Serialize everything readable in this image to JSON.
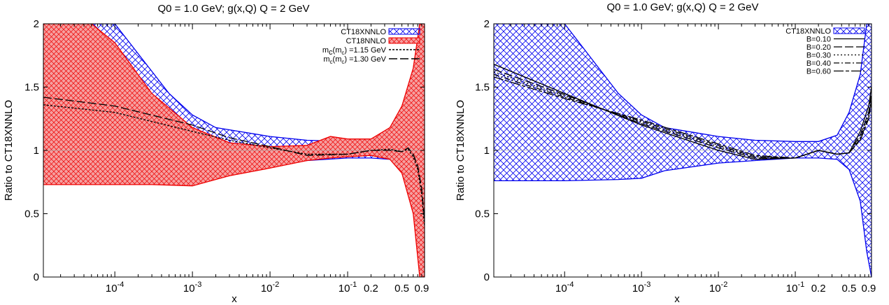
{
  "colors": {
    "ct18xnnlo": "#0000ee",
    "ct18nnlo": "#ee0000",
    "red_fill": "#f5a0a0",
    "curve": "#000000",
    "grid": "#b0b0b0"
  },
  "chart_data": [
    {
      "type": "line",
      "title": "Q0 = 1.0 GeV; g(x,Q)   Q = 2 GeV",
      "xlabel": "x",
      "ylabel": "Ratio to CT18XNNLO",
      "xscale": "log",
      "xlim": [
        1.2e-05,
        0.98
      ],
      "ylim": [
        0,
        2
      ],
      "yticks": [
        0,
        0.5,
        1,
        1.5,
        2
      ],
      "ytick_labels": [
        "0",
        "0.5",
        "1",
        "1.5",
        "2"
      ],
      "xticks": [
        {
          "x": 0.0001,
          "base": "10",
          "exp": "-4"
        },
        {
          "x": 0.001,
          "base": "10",
          "exp": "-3"
        },
        {
          "x": 0.01,
          "base": "10",
          "exp": "-2"
        },
        {
          "x": 0.1,
          "base": "10",
          "exp": "-1"
        },
        {
          "x": 0.2,
          "base": "0.2",
          "exp": ""
        },
        {
          "x": 0.5,
          "base": "0.5",
          "exp": ""
        },
        {
          "x": 0.9,
          "base": "0.9",
          "exp": ""
        }
      ],
      "legend_position": "top-right",
      "bands": [
        {
          "name": "CT18XNNLO",
          "color": "#0000ee",
          "hatch": "cross",
          "x": [
            1.2e-05,
            2e-05,
            0.0001,
            0.0005,
            0.001,
            0.002,
            0.01,
            0.03,
            0.1,
            0.2,
            0.35,
            0.5,
            0.7,
            0.85,
            0.98
          ],
          "upper": [
            2.0,
            2.0,
            2.0,
            1.45,
            1.28,
            1.18,
            1.11,
            1.08,
            1.07,
            1.07,
            1.12,
            1.3,
            1.6,
            2.0,
            2.0
          ],
          "lower": [
            0.76,
            0.76,
            0.76,
            0.77,
            0.78,
            0.84,
            0.9,
            0.92,
            0.94,
            0.94,
            0.93,
            0.85,
            0.6,
            0.2,
            0.0
          ]
        },
        {
          "name": "CT18NNLO",
          "color": "#ee0000",
          "hatch": "cross-fill",
          "x": [
            1.2e-05,
            5e-05,
            0.0001,
            0.0003,
            0.001,
            0.003,
            0.01,
            0.03,
            0.06,
            0.1,
            0.2,
            0.35,
            0.5,
            0.7,
            0.85,
            0.98
          ],
          "upper": [
            2.0,
            2.0,
            1.85,
            1.45,
            1.18,
            1.06,
            1.03,
            1.04,
            1.11,
            1.09,
            1.09,
            1.18,
            1.35,
            1.65,
            2.0,
            2.0
          ],
          "lower": [
            0.73,
            0.73,
            0.73,
            0.73,
            0.72,
            0.8,
            0.86,
            0.92,
            0.94,
            0.95,
            0.96,
            0.93,
            0.82,
            0.5,
            0.0,
            0.0
          ]
        }
      ],
      "series": [
        {
          "name": "m_c(m_c) =1.15 GeV",
          "dash": "short",
          "x": [
            1.2e-05,
            0.0001,
            0.001,
            0.003,
            0.01,
            0.03,
            0.1,
            0.2,
            0.35,
            0.5,
            0.6,
            0.7,
            0.8,
            0.9,
            0.98
          ],
          "values": [
            1.36,
            1.3,
            1.15,
            1.08,
            1.02,
            0.97,
            0.97,
            1.0,
            1.01,
            0.99,
            1.01,
            0.95,
            0.85,
            0.65,
            0.4
          ]
        },
        {
          "name": "m_c(m_c) =1.30 GeV",
          "dash": "long",
          "x": [
            1.2e-05,
            0.0001,
            0.001,
            0.003,
            0.01,
            0.03,
            0.1,
            0.2,
            0.35,
            0.5,
            0.6,
            0.7,
            0.8,
            0.9,
            0.98
          ],
          "values": [
            1.42,
            1.35,
            1.2,
            1.1,
            1.03,
            0.96,
            0.97,
            1.0,
            1.0,
            0.99,
            1.02,
            0.97,
            0.88,
            0.7,
            0.45
          ]
        }
      ],
      "legend_entries": [
        "CT18XNNLO",
        "CT18NNLO",
        "m_c(m_c) =1.15 GeV",
        "m_c(m_c) =1.30 GeV"
      ],
      "legend_labels": {
        "band1": "CT18XNNLO",
        "band2": "CT18NNLO",
        "s1": {
          "pre": "m",
          "sub1": "c",
          "mid": "(m",
          "sub2": "c",
          "post": ") =1.15 GeV"
        },
        "s2": {
          "pre": "m",
          "sub1": "c",
          "mid": "(m",
          "sub2": "c",
          "post": ") =1.30 GeV"
        }
      }
    },
    {
      "type": "line",
      "title": "Q0 = 1.0 GeV; g(x,Q)   Q = 2 GeV",
      "xlabel": "x",
      "ylabel": "Ratio to CT18XNNLO",
      "xscale": "log",
      "xlim": [
        1.2e-05,
        0.98
      ],
      "ylim": [
        0,
        2
      ],
      "yticks": [
        0,
        0.5,
        1,
        1.5,
        2
      ],
      "ytick_labels": [
        "0",
        "0.5",
        "1",
        "1.5",
        "2"
      ],
      "xticks": [
        {
          "x": 0.0001,
          "base": "10",
          "exp": "-4"
        },
        {
          "x": 0.001,
          "base": "10",
          "exp": "-3"
        },
        {
          "x": 0.01,
          "base": "10",
          "exp": "-2"
        },
        {
          "x": 0.1,
          "base": "10",
          "exp": "-1"
        },
        {
          "x": 0.2,
          "base": "0.2",
          "exp": ""
        },
        {
          "x": 0.5,
          "base": "0.5",
          "exp": ""
        },
        {
          "x": 0.9,
          "base": "0.9",
          "exp": ""
        }
      ],
      "legend_position": "top-right",
      "bands": [
        {
          "name": "CT18XNNLO",
          "color": "#0000ee",
          "hatch": "cross",
          "x": [
            1.2e-05,
            2e-05,
            0.0001,
            0.0005,
            0.001,
            0.002,
            0.01,
            0.03,
            0.1,
            0.2,
            0.35,
            0.5,
            0.7,
            0.85,
            0.98
          ],
          "upper": [
            2.0,
            2.0,
            2.0,
            1.45,
            1.28,
            1.18,
            1.11,
            1.08,
            1.07,
            1.07,
            1.12,
            1.3,
            1.6,
            2.0,
            2.0
          ],
          "lower": [
            0.76,
            0.76,
            0.76,
            0.77,
            0.78,
            0.84,
            0.9,
            0.92,
            0.94,
            0.94,
            0.93,
            0.85,
            0.6,
            0.2,
            0.0
          ]
        }
      ],
      "series": [
        {
          "name": "B=0.10",
          "dash": "solid",
          "x": [
            1.2e-05,
            0.0001,
            0.001,
            0.01,
            0.03,
            0.1,
            0.2,
            0.35,
            0.5,
            0.7,
            0.9,
            0.98
          ],
          "values": [
            1.68,
            1.45,
            1.2,
            1.0,
            0.93,
            0.94,
            1.0,
            0.97,
            0.98,
            1.15,
            1.35,
            1.5
          ]
        },
        {
          "name": "B=0.20",
          "dash": "long",
          "x": [
            1.2e-05,
            0.0001,
            0.001,
            0.01,
            0.03,
            0.1,
            0.2,
            0.35,
            0.5,
            0.7,
            0.9,
            0.98
          ],
          "values": [
            1.64,
            1.44,
            1.21,
            1.02,
            0.94,
            0.94,
            1.0,
            0.97,
            0.98,
            1.12,
            1.3,
            1.45
          ]
        },
        {
          "name": "B=0.30",
          "dash": "dot",
          "x": [
            1.2e-05,
            0.0001,
            0.001,
            0.01,
            0.03,
            0.1,
            0.2,
            0.35,
            0.5,
            0.7,
            0.9,
            0.98
          ],
          "values": [
            1.62,
            1.43,
            1.22,
            1.03,
            0.95,
            0.94,
            1.0,
            0.97,
            0.98,
            1.1,
            1.28,
            1.42
          ]
        },
        {
          "name": "B=0.40",
          "dash": "dashdot",
          "x": [
            1.2e-05,
            0.0001,
            0.001,
            0.01,
            0.03,
            0.1,
            0.2,
            0.35,
            0.5,
            0.7,
            0.9,
            0.98
          ],
          "values": [
            1.6,
            1.42,
            1.23,
            1.04,
            0.95,
            0.94,
            1.0,
            0.97,
            0.98,
            1.09,
            1.26,
            1.4
          ]
        },
        {
          "name": "B=0.60",
          "dash": "longshort",
          "x": [
            1.2e-05,
            0.0001,
            0.001,
            0.01,
            0.03,
            0.1,
            0.2,
            0.35,
            0.5,
            0.7,
            0.9,
            0.98
          ],
          "values": [
            1.58,
            1.41,
            1.24,
            1.05,
            0.96,
            0.94,
            1.0,
            0.97,
            0.98,
            1.08,
            1.25,
            1.38
          ]
        }
      ],
      "legend_entries": [
        "CT18XNNLO",
        "B=0.10",
        "B=0.20",
        "B=0.30",
        "B=0.40",
        "B=0.60"
      ]
    }
  ]
}
